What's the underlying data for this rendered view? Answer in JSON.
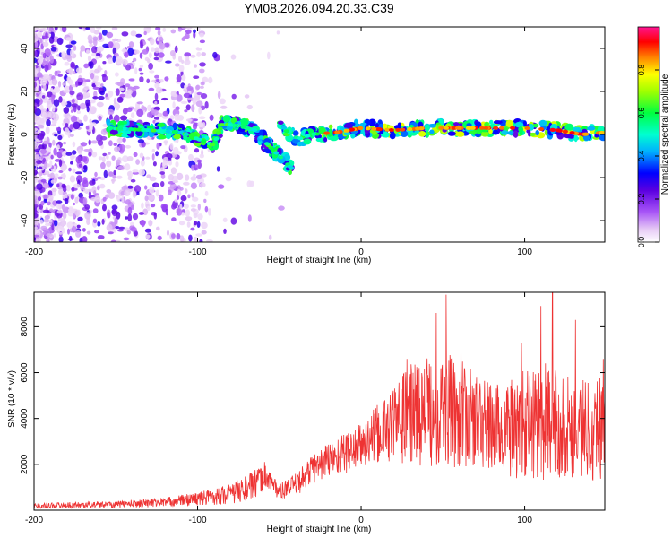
{
  "figure_title": "YM08.2026.094.20.33.C39",
  "chart_data": [
    {
      "type": "heatmap",
      "panel": "spectrogram",
      "title": "YM08.2026.094.20.33.C39",
      "xlabel": "Height of straight line (km)",
      "ylabel": "Frequency (Hz)",
      "xlim": [
        -200,
        149
      ],
      "ylim": [
        -50,
        50
      ],
      "xticks": [
        -200,
        -100,
        0,
        100
      ],
      "xtick_labels": [
        "-200",
        "-100",
        "0",
        "100"
      ],
      "yticks": [
        -40,
        -20,
        0,
        20,
        40
      ],
      "ytick_labels": [
        "-40",
        "-20",
        "0",
        "20",
        "40"
      ],
      "colorbar": {
        "label": "Normalized spectral amplitude",
        "range": [
          0,
          1
        ],
        "ticks": [
          0.0,
          0.2,
          0.4,
          0.6,
          0.8
        ],
        "tick_labels": [
          "0.0",
          "0.2",
          "0.4",
          "0.6",
          "0.8"
        ]
      },
      "features": [
        {
          "name": "main ridge",
          "points": [
            [
              -155,
              3
            ],
            [
              -130,
              2
            ],
            [
              -110,
              1
            ],
            [
              -100,
              -2
            ],
            [
              -90,
              -5
            ],
            [
              -85,
              5
            ],
            [
              -75,
              4
            ],
            [
              -65,
              2
            ],
            [
              -58,
              -4
            ],
            [
              -50,
              -10
            ],
            [
              -42,
              -16
            ]
          ]
        },
        {
          "name": "descending branch",
          "points": [
            [
              -50,
              6
            ],
            [
              -45,
              1
            ],
            [
              -38,
              -2
            ],
            [
              -30,
              0
            ],
            [
              -15,
              1
            ],
            [
              0,
              3
            ],
            [
              20,
              2
            ],
            [
              40,
              3
            ],
            [
              60,
              3
            ],
            [
              80,
              3
            ],
            [
              100,
              3
            ],
            [
              120,
              2
            ],
            [
              135,
              0
            ],
            [
              149,
              1
            ]
          ]
        }
      ]
    },
    {
      "type": "line",
      "panel": "snr",
      "xlabel": "Height of straight line (km)",
      "ylabel": "SNR (10 * v/v)",
      "xlim": [
        -200,
        149
      ],
      "ylim": [
        0,
        9500
      ],
      "xticks": [
        -200,
        -100,
        0,
        100
      ],
      "xtick_labels": [
        "-200",
        "-100",
        "0",
        "100"
      ],
      "yticks": [
        2000,
        4000,
        6000,
        8000
      ],
      "ytick_labels": [
        "2000",
        "4000",
        "6000",
        "8000"
      ],
      "series": [
        {
          "name": "SNR",
          "color": "#ee3333",
          "envelope_x": [
            -200,
            -150,
            -120,
            -100,
            -80,
            -65,
            -58,
            -50,
            -40,
            -30,
            -20,
            -10,
            0,
            10,
            20,
            30,
            40,
            50,
            60,
            70,
            80,
            90,
            100,
            110,
            120,
            130,
            140,
            149
          ],
          "envelope_mean": [
            200,
            250,
            350,
            500,
            700,
            1100,
            1500,
            800,
            1100,
            1800,
            2200,
            2500,
            2800,
            3300,
            3800,
            4200,
            4300,
            4400,
            4200,
            3900,
            3600,
            3500,
            3700,
            3900,
            3800,
            3600,
            3600,
            3800
          ],
          "envelope_spread": [
            120,
            150,
            200,
            300,
            450,
            650,
            500,
            350,
            500,
            650,
            800,
            900,
            1000,
            1300,
            1700,
            2200,
            2400,
            2500,
            2400,
            2100,
            2000,
            2100,
            2500,
            2600,
            2400,
            2200,
            2300,
            2500
          ],
          "peaks": [
            [
              -59,
              2100
            ],
            [
              28,
              6600
            ],
            [
              46,
              8600
            ],
            [
              52,
              9400
            ],
            [
              61,
              8400
            ],
            [
              98,
              7300
            ],
            [
              110,
              8900
            ],
            [
              117,
              9500
            ],
            [
              131,
              8300
            ],
            [
              148,
              6600
            ]
          ]
        }
      ]
    }
  ]
}
